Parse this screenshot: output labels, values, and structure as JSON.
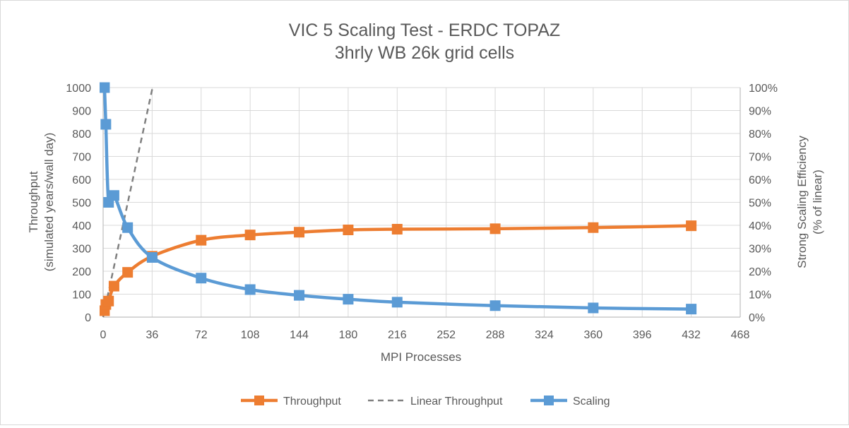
{
  "chart_data": {
    "type": "line",
    "title": "VIC 5 Scaling Test - ERDC TOPAZ",
    "subtitle": "3hrly WB 26k grid cells",
    "xlabel": "MPI Processes",
    "ylabel_left_line1": "Throughput",
    "ylabel_left_line2": "(simulated years/wall day)",
    "ylabel_right_line1": "Strong Scaling Efficiency",
    "ylabel_right_line2": "(% of linear)",
    "xlim": [
      0,
      468
    ],
    "ylim_left": [
      0,
      1000
    ],
    "ylim_right": [
      0,
      1
    ],
    "x_ticks": [
      "0",
      "36",
      "72",
      "108",
      "144",
      "180",
      "216",
      "252",
      "288",
      "324",
      "360",
      "396",
      "432",
      "468"
    ],
    "y_left_ticks": [
      "0",
      "100",
      "200",
      "300",
      "400",
      "500",
      "600",
      "700",
      "800",
      "900",
      "1000"
    ],
    "y_right_ticks": [
      "0%",
      "10%",
      "20%",
      "30%",
      "40%",
      "50%",
      "60%",
      "70%",
      "80%",
      "90%",
      "100%"
    ],
    "grid": true,
    "legend_position": "bottom",
    "series": [
      {
        "name": "Throughput",
        "axis": "left",
        "color": "#ED7D31",
        "marker": "square",
        "line_style": "solid",
        "x": [
          1,
          2,
          4,
          8,
          18,
          36,
          72,
          108,
          144,
          180,
          216,
          288,
          360,
          432
        ],
        "y": [
          28,
          55,
          70,
          135,
          195,
          265,
          335,
          358,
          370,
          380,
          383,
          385,
          390,
          398
        ]
      },
      {
        "name": "Linear Throughput",
        "axis": "left",
        "color": "#808080",
        "marker": "none",
        "line_style": "dashed",
        "x": [
          0,
          36.3
        ],
        "y": [
          0,
          1000
        ]
      },
      {
        "name": "Scaling",
        "axis": "right",
        "color": "#5B9BD5",
        "marker": "square",
        "line_style": "solid",
        "x": [
          1,
          2,
          4,
          8,
          18,
          36,
          72,
          108,
          144,
          180,
          216,
          288,
          360,
          432
        ],
        "y": [
          1.0,
          0.84,
          0.5,
          0.53,
          0.39,
          0.26,
          0.17,
          0.12,
          0.095,
          0.078,
          0.065,
          0.05,
          0.04,
          0.035
        ]
      }
    ]
  }
}
